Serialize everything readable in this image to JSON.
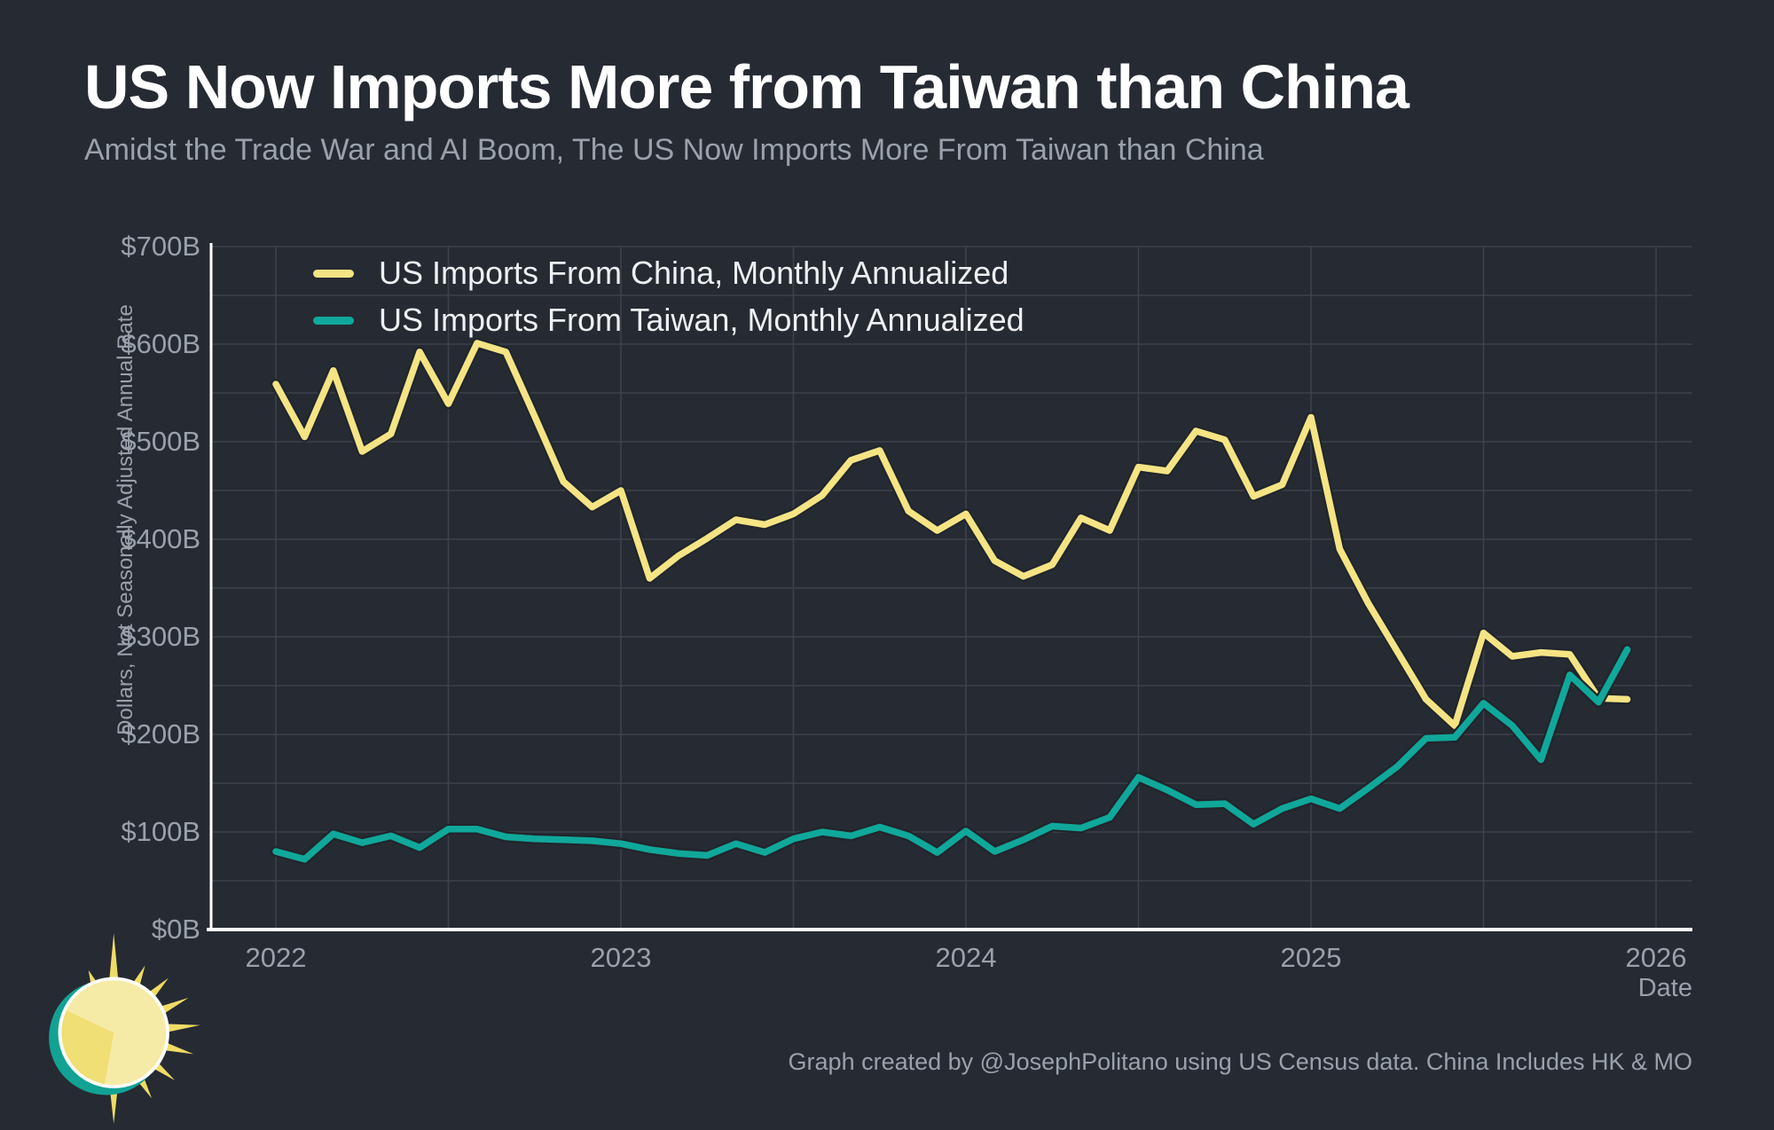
{
  "title": "US Now Imports More from Taiwan than China",
  "subtitle": "Amidst the Trade War and AI Boom, The US Now Imports More From Taiwan than China",
  "footer_credit": "Graph created by @JosephPolitano using US Census data. China Includes HK & MO",
  "logo": "apricitas-sun-logo",
  "colors": {
    "background": "#262a32",
    "gridline": "#3c424b",
    "axis_spine": "#ffffff",
    "muted_text": "#9aa1ad",
    "title_text": "#ffffff",
    "china_line": "#f4e484",
    "taiwan_line": "#10a89a",
    "line_outline": "#21252d"
  },
  "chart_data": {
    "type": "line",
    "xlabel": "Date",
    "ylabel": "Dollars, Not Seasonally Adjusted Annual Rate",
    "x_start": "2022-01",
    "frequency": "monthly",
    "ylim": [
      0,
      700
    ],
    "y_grid_step_billions": 50,
    "y_tick_labels": [
      "$0B",
      "$100B",
      "$200B",
      "$300B",
      "$400B",
      "$500B",
      "$600B",
      "$700B"
    ],
    "x_tick_labels": [
      "2022",
      "2023",
      "2024",
      "2025",
      "2026"
    ],
    "grid": true,
    "legend_position": "top-left",
    "series": [
      {
        "name": "US Imports From China, Monthly Annualized",
        "color": "#f4e484",
        "values": [
          559,
          505,
          573,
          490,
          508,
          592,
          539,
          601,
          592,
          526,
          459,
          433,
          450,
          360,
          383,
          401,
          420,
          415,
          426,
          445,
          481,
          491,
          429,
          409,
          426,
          378,
          362,
          374,
          422,
          409,
          474,
          470,
          511,
          502,
          444,
          456,
          525,
          390,
          334,
          285,
          236,
          209,
          304,
          280,
          284,
          282,
          237,
          236
        ]
      },
      {
        "name": "US Imports From Taiwan, Monthly Annualized",
        "color": "#10a89a",
        "values": [
          80,
          72,
          98,
          89,
          96,
          84,
          103,
          103,
          95,
          93,
          92,
          91,
          88,
          82,
          78,
          76,
          88,
          79,
          93,
          100,
          96,
          105,
          96,
          79,
          101,
          80,
          92,
          106,
          104,
          115,
          156,
          143,
          128,
          129,
          108,
          124,
          134,
          124,
          145,
          167,
          196,
          197,
          232,
          209,
          174,
          261,
          233,
          287
        ]
      }
    ]
  }
}
